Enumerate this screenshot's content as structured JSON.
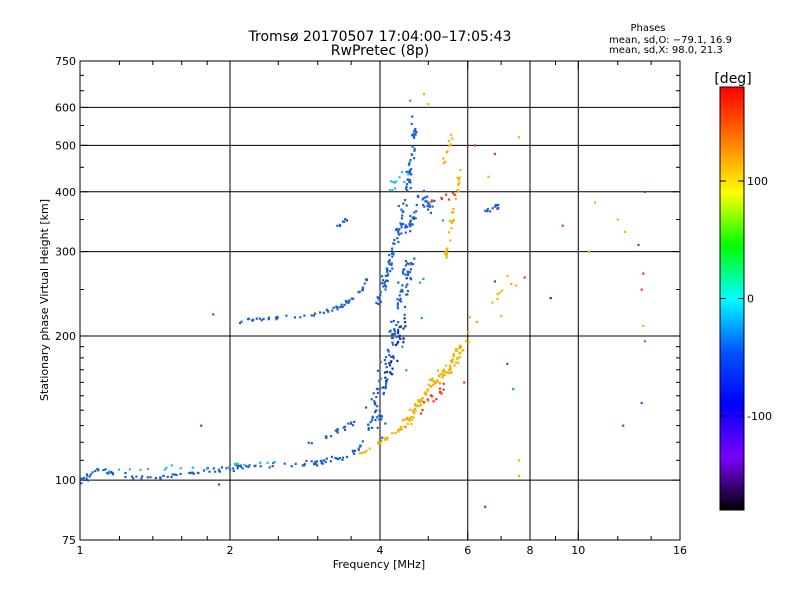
{
  "chart_data": {
    "type": "scatter",
    "title": "Tromsø 20170507 17:04:00–17:05:43",
    "subtitle": "RwPretec (8p)",
    "xlabel": "Frequency [MHz]",
    "ylabel": "Stationary phase Virtual Height [km]",
    "x_scale": "log",
    "y_scale": "log",
    "xlim": [
      1,
      16
    ],
    "ylim": [
      75,
      750
    ],
    "x_ticks": [
      1,
      2,
      4,
      6,
      8,
      10,
      16
    ],
    "x_tick_labels": [
      "1",
      "2",
      "4",
      "6",
      "8",
      "10",
      "16"
    ],
    "x_minor_ticks": [
      1.2,
      1.4,
      1.6,
      1.8,
      2.5,
      3,
      3.5,
      5,
      7,
      9,
      12,
      14
    ],
    "y_ticks": [
      75,
      100,
      200,
      300,
      400,
      500,
      600,
      750
    ],
    "y_tick_labels": [
      "75",
      "100",
      "200",
      "300",
      "400",
      "500",
      "600",
      "750"
    ],
    "y_minor_ticks": [
      110,
      120,
      130,
      140,
      150,
      160,
      170,
      180,
      190,
      250,
      350,
      450,
      550,
      650,
      700
    ],
    "grid": true,
    "grid_x": [
      2,
      4,
      6,
      8,
      10
    ],
    "grid_y": [
      100,
      200,
      300,
      400,
      500,
      600
    ],
    "phases_box": {
      "title": "Phases",
      "line_o": "mean, sd,O: −79.1, 16.9",
      "line_x": "mean, sd,X:  98.0, 21.3"
    },
    "colorbar": {
      "label": "[deg]",
      "range": [
        -180,
        180
      ],
      "ticks": [
        100,
        0,
        -100
      ],
      "tick_labels": [
        "100",
        "0",
        "-100"
      ],
      "colors": [
        "#ff0000",
        "#ff7a00",
        "#ffff00",
        "#00ff00",
        "#00ffff",
        "#0055ff",
        "#0000ff",
        "#7a00ff",
        "#000000"
      ]
    },
    "series": [
      {
        "color": "#1e5fd0",
        "traces": [
          {
            "x": [
              1.0,
              1.05,
              1.1,
              1.15,
              1.22,
              1.3,
              1.4,
              1.5,
              1.6,
              1.75,
              1.9,
              2.05,
              2.2,
              2.4,
              2.6,
              2.8,
              3.0,
              3.2,
              3.4,
              3.55,
              3.7,
              3.8,
              3.9,
              3.95,
              4.0
            ],
            "y": [
              99,
              103,
              106,
              104,
              102,
              101,
              101,
              102,
              103,
              104,
              105,
              106,
              107,
              107,
              108,
              108,
              109,
              110,
              112,
              115,
              120,
              127,
              137,
              152,
              180
            ],
            "n": 150,
            "sx": 0.018,
            "sy": 0.018
          },
          {
            "x": [
              2.1,
              2.2,
              2.35,
              2.5,
              2.7,
              2.9,
              3.1,
              3.3,
              3.5,
              3.7,
              3.8
            ],
            "y": [
              214,
              216,
              217,
              218,
              219,
              221,
              224,
              229,
              238,
              252,
              268
            ],
            "n": 60,
            "sx": 0.012,
            "sy": 0.012
          },
          {
            "x": [
              2.9,
              3.2,
              3.45,
              3.7,
              3.9,
              4.0
            ],
            "y": [
              120,
              125,
              130,
              138,
              150,
              165
            ],
            "n": 25,
            "sx": 0.015,
            "sy": 0.02
          },
          {
            "x": [
              3.95,
              4.05,
              4.15,
              4.25,
              4.35,
              4.45,
              4.55,
              4.65,
              4.7
            ],
            "y": [
              235,
              255,
              275,
              300,
              330,
              370,
              420,
              480,
              560
            ],
            "n": 110,
            "sx": 0.025,
            "sy": 0.03
          },
          {
            "x": [
              3.95,
              4.0,
              4.1,
              4.2,
              4.3,
              4.4,
              4.5,
              4.6
            ],
            "y": [
              120,
              140,
              165,
              190,
              215,
              240,
              265,
              285
            ],
            "n": 90,
            "sx": 0.04,
            "sy": 0.06
          },
          {
            "x": [
              4.5,
              4.7,
              4.9,
              5.1
            ],
            "y": [
              330,
              360,
              390,
              370
            ],
            "n": 40,
            "sx": 0.03,
            "sy": 0.05
          },
          {
            "x": [
              3.25,
              3.35,
              3.45
            ],
            "y": [
              338,
              344,
              350
            ],
            "n": 8,
            "sx": 0.01,
            "sy": 0.01
          },
          {
            "x": [
              6.4,
              6.6,
              6.8,
              7.0
            ],
            "y": [
              365,
              368,
              370,
              375
            ],
            "n": 12,
            "sx": 0.015,
            "sy": 0.02
          }
        ]
      },
      {
        "color": "#f2b400",
        "traces": [
          {
            "x": [
              3.6,
              3.8,
              4.0,
              4.2,
              4.4,
              4.6
            ],
            "y": [
              113,
              116,
              120,
              124,
              128,
              132
            ],
            "n": 30,
            "sx": 0.012,
            "sy": 0.012
          },
          {
            "x": [
              4.5,
              4.7,
              4.9,
              5.1,
              5.3,
              5.5,
              5.7,
              5.8
            ],
            "y": [
              130,
              140,
              150,
              158,
              165,
              172,
              180,
              190
            ],
            "n": 110,
            "sx": 0.03,
            "sy": 0.045
          },
          {
            "x": [
              5.4,
              5.5,
              5.6,
              5.7,
              5.8
            ],
            "y": [
              290,
              320,
              360,
              400,
              440
            ],
            "n": 30,
            "sx": 0.015,
            "sy": 0.05
          },
          {
            "x": [
              5.3,
              5.5,
              5.6
            ],
            "y": [
              460,
              500,
              540
            ],
            "n": 10,
            "sx": 0.02,
            "sy": 0.04
          },
          {
            "x": [
              5.8,
              6.2,
              6.8,
              7.4
            ],
            "y": [
              190,
              215,
              240,
              265
            ],
            "n": 12,
            "sx": 0.03,
            "sy": 0.05
          }
        ]
      },
      {
        "color": "#e83a10",
        "traces": [
          {
            "x": [
              4.8,
              5.0,
              5.2,
              5.4
            ],
            "y": [
              140,
              145,
              150,
              155
            ],
            "n": 14,
            "sx": 0.03,
            "sy": 0.05
          },
          {
            "x": [
              5.0,
              5.3,
              5.6
            ],
            "y": [
              380,
              390,
              400
            ],
            "n": 8,
            "sx": 0.03,
            "sy": 0.04
          }
        ]
      },
      {
        "color": "#20c0d8",
        "traces": [
          {
            "x": [
              1.1,
              1.5,
              2.0,
              2.5
            ],
            "y": [
              104,
              106,
              108,
              110
            ],
            "n": 18,
            "sx": 0.02,
            "sy": 0.02
          },
          {
            "x": [
              4.2,
              4.4,
              4.6
            ],
            "y": [
              400,
              430,
              460
            ],
            "n": 12,
            "sx": 0.03,
            "sy": 0.05
          }
        ]
      },
      {
        "color": "#1030a0",
        "traces": [
          {
            "x": [
              4.1,
              4.3,
              4.5
            ],
            "y": [
              160,
              190,
              220
            ],
            "n": 30,
            "sx": 0.03,
            "sy": 0.06
          }
        ]
      },
      {
        "color": "#18c040",
        "traces": [
          {
            "x": [
              4.4,
              5.0,
              5.8
            ],
            "y": [
              175,
              300,
              450
            ],
            "n": 6,
            "sx": 0.04,
            "sy": 0.1
          }
        ]
      }
    ],
    "isolated_points": [
      {
        "x": 12.0,
        "y": 350,
        "color": "#f2b400"
      },
      {
        "x": 12.4,
        "y": 330,
        "color": "#f2b400"
      },
      {
        "x": 13.2,
        "y": 310,
        "color": "#1e5fd0"
      },
      {
        "x": 13.6,
        "y": 400,
        "color": "#1e5fd0"
      },
      {
        "x": 13.5,
        "y": 270,
        "color": "#e83a10"
      },
      {
        "x": 13.4,
        "y": 250,
        "color": "#e83a10"
      },
      {
        "x": 13.5,
        "y": 210,
        "color": "#f2b400"
      },
      {
        "x": 13.6,
        "y": 195,
        "color": "#18c040"
      },
      {
        "x": 13.4,
        "y": 145,
        "color": "#1e5fd0"
      },
      {
        "x": 12.3,
        "y": 130,
        "color": "#1e5fd0"
      },
      {
        "x": 10.5,
        "y": 300,
        "color": "#f2b400"
      },
      {
        "x": 10.8,
        "y": 380,
        "color": "#f2b400"
      },
      {
        "x": 9.3,
        "y": 340,
        "color": "#e83a10"
      },
      {
        "x": 8.8,
        "y": 240,
        "color": "#1030a0"
      },
      {
        "x": 7.8,
        "y": 265,
        "color": "#e83a10"
      },
      {
        "x": 7.5,
        "y": 255,
        "color": "#f2b400"
      },
      {
        "x": 7.6,
        "y": 520,
        "color": "#f2b400"
      },
      {
        "x": 7.2,
        "y": 175,
        "color": "#1e5fd0"
      },
      {
        "x": 7.4,
        "y": 155,
        "color": "#18c040"
      },
      {
        "x": 7.6,
        "y": 110,
        "color": "#f2b400"
      },
      {
        "x": 7.6,
        "y": 102,
        "color": "#f2b400"
      },
      {
        "x": 6.5,
        "y": 88,
        "color": "#1e5fd0"
      },
      {
        "x": 6.6,
        "y": 430,
        "color": "#f2b400"
      },
      {
        "x": 6.8,
        "y": 480,
        "color": "#e83a10"
      },
      {
        "x": 6.2,
        "y": 500,
        "color": "#e83a10"
      },
      {
        "x": 1.85,
        "y": 222,
        "color": "#1e5fd0"
      },
      {
        "x": 1.9,
        "y": 98,
        "color": "#1e5fd0"
      },
      {
        "x": 1.75,
        "y": 130,
        "color": "#1e5fd0"
      },
      {
        "x": 4.6,
        "y": 620,
        "color": "#18c040"
      },
      {
        "x": 4.9,
        "y": 640,
        "color": "#f2b400"
      },
      {
        "x": 5.0,
        "y": 610,
        "color": "#f2b400"
      },
      {
        "x": 5.9,
        "y": 160,
        "color": "#e83a10"
      },
      {
        "x": 6.8,
        "y": 260,
        "color": "#1e5fd0"
      },
      {
        "x": 7.0,
        "y": 220,
        "color": "#f2b400"
      }
    ]
  }
}
